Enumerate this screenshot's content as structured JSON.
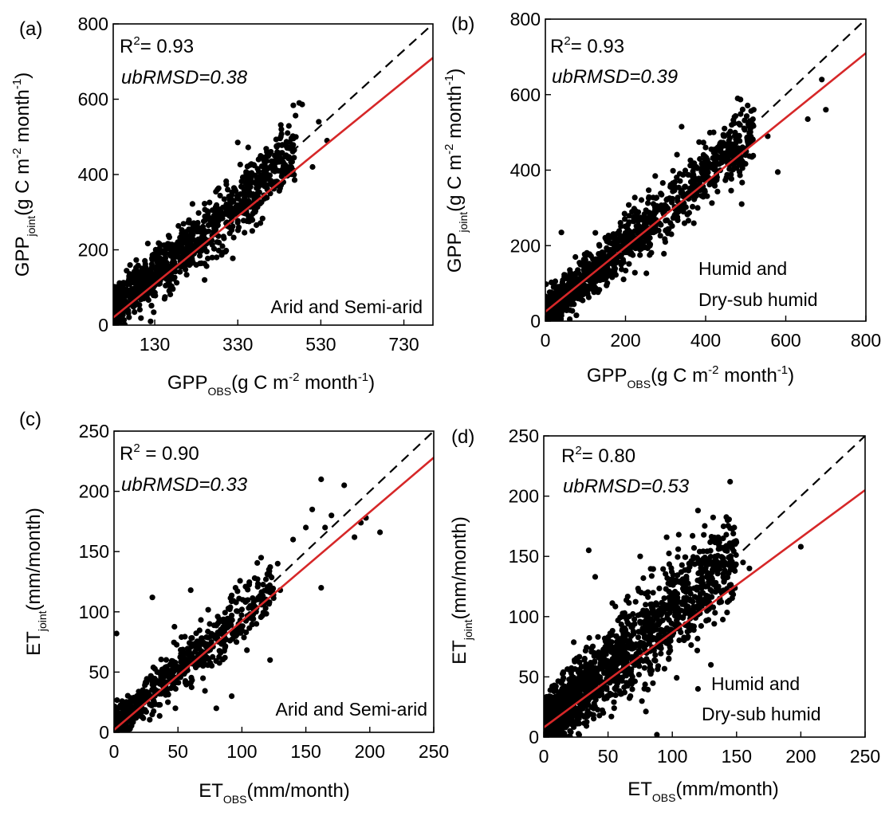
{
  "figure": {
    "background": "#ffffff"
  },
  "chart_data": [
    {
      "type": "scatter",
      "panel_label": "(a)",
      "xlabel": {
        "main": "GPP",
        "sub": "OBS",
        "unit_pre": "(g C m",
        "unit_sup1": "-2",
        "unit_mid": " month",
        "unit_sup2": "-1",
        "unit_post": ")"
      },
      "ylabel": {
        "main": "GPP",
        "sub": "joint",
        "unit_pre": "(g C m",
        "unit_sup1": "-2",
        "unit_mid": " month",
        "unit_sup2": "-1",
        "unit_post": ")"
      },
      "xlim": [
        30,
        800
      ],
      "ylim": [
        0,
        800
      ],
      "xticks": [
        130,
        330,
        530,
        730
      ],
      "xtick_labels": [
        "130",
        "330",
        "530",
        "730"
      ],
      "yticks": [
        0,
        200,
        400,
        600,
        800
      ],
      "ytick_labels": [
        "0",
        "200",
        "400",
        "600",
        "800"
      ],
      "stats": {
        "r2_label": "R",
        "r2_sup": "2",
        "r2_value": "= 0.93",
        "ubrmsd": "ubRMSD=0.38"
      },
      "region_label": [
        "Arid and Semi-arid"
      ],
      "one_to_one": {
        "from": [
          430,
          430
        ],
        "to": [
          800,
          800
        ]
      },
      "fit_line": {
        "from": [
          30,
          20
        ],
        "to": [
          800,
          710
        ]
      },
      "colors": {
        "points": "#000000",
        "fit": "#d62728",
        "one_to_one": "#000000"
      },
      "cloud": {
        "n": 1100,
        "x_range": [
          30,
          470
        ],
        "slope": 0.95,
        "intercept": 12,
        "noise": 42,
        "zero_floor": true
      },
      "points": [
        [
          478,
          590
        ],
        [
          485,
          586
        ],
        [
          510,
          420
        ],
        [
          525,
          540
        ],
        [
          545,
          490
        ],
        [
          435,
          520
        ],
        [
          450,
          510
        ],
        [
          462,
          470
        ],
        [
          470,
          500
        ],
        [
          400,
          460
        ],
        [
          380,
          440
        ],
        [
          355,
          472
        ],
        [
          330,
          485
        ],
        [
          220,
          175
        ],
        [
          230,
          160
        ],
        [
          120,
          10
        ],
        [
          165,
          120
        ],
        [
          250,
          120
        ],
        [
          310,
          290
        ],
        [
          395,
          420
        ]
      ]
    },
    {
      "type": "scatter",
      "panel_label": "(b)",
      "xlabel": {
        "main": "GPP",
        "sub": "OBS",
        "unit_pre": "(g C m",
        "unit_sup1": "-2",
        "unit_mid": " month",
        "unit_sup2": "-1",
        "unit_post": ")"
      },
      "ylabel": {
        "main": "GPP",
        "sub": "joint",
        "unit_pre": "(g C m",
        "unit_sup1": "-2",
        "unit_mid": " month",
        "unit_sup2": "-1",
        "unit_post": ")"
      },
      "xlim": [
        0,
        800
      ],
      "ylim": [
        0,
        800
      ],
      "xticks": [
        0,
        200,
        400,
        600,
        800
      ],
      "xtick_labels": [
        "0",
        "200",
        "400",
        "600",
        "800"
      ],
      "yticks": [
        0,
        200,
        400,
        600,
        800
      ],
      "ytick_labels": [
        "0",
        "200",
        "400",
        "600",
        "800"
      ],
      "stats": {
        "r2_label": "R",
        "r2_sup": "2",
        "r2_value": "= 0.93",
        "ubrmsd": "ubRMSD=0.39"
      },
      "region_label": [
        "Humid and",
        "Dry-sub humid"
      ],
      "one_to_one": {
        "from": [
          540,
          540
        ],
        "to": [
          800,
          800
        ]
      },
      "fit_line": {
        "from": [
          0,
          25
        ],
        "to": [
          800,
          710
        ]
      },
      "colors": {
        "points": "#000000",
        "fit": "#d62728",
        "one_to_one": "#000000"
      },
      "cloud": {
        "n": 1300,
        "x_range": [
          0,
          520
        ],
        "slope": 0.93,
        "intercept": 18,
        "noise": 40,
        "zero_floor": true
      },
      "points": [
        [
          480,
          590
        ],
        [
          487,
          587
        ],
        [
          690,
          640
        ],
        [
          700,
          560
        ],
        [
          655,
          535
        ],
        [
          580,
          395
        ],
        [
          555,
          490
        ],
        [
          490,
          310
        ],
        [
          510,
          530
        ],
        [
          465,
          520
        ],
        [
          420,
          500
        ],
        [
          340,
          515
        ],
        [
          130,
          80
        ],
        [
          40,
          235
        ],
        [
          75,
          170
        ],
        [
          300,
          240
        ],
        [
          380,
          300
        ],
        [
          440,
          420
        ],
        [
          520,
          560
        ],
        [
          400,
          460
        ]
      ]
    },
    {
      "type": "scatter",
      "panel_label": "(c)",
      "xlabel": {
        "main": "ET",
        "sub": "OBS",
        "unit": "(mm/month)"
      },
      "ylabel": {
        "main": "ET",
        "sub": "joint",
        "unit": "(mm/month)"
      },
      "xlim": [
        0,
        250
      ],
      "ylim": [
        0,
        250
      ],
      "xticks": [
        0,
        50,
        100,
        150,
        200,
        250
      ],
      "xtick_labels": [
        "0",
        "50",
        "100",
        "150",
        "200",
        "250"
      ],
      "yticks": [
        0,
        50,
        100,
        150,
        200,
        250
      ],
      "ytick_labels": [
        "0",
        "50",
        "100",
        "150",
        "200",
        "250"
      ],
      "stats": {
        "r2_label": "R",
        "r2_sup": "2",
        "r2_value": " = 0.90",
        "ubrmsd": "ubRMSD=0.33"
      },
      "region_label": [
        "Arid and Semi-arid"
      ],
      "one_to_one": {
        "from": [
          125,
          125
        ],
        "to": [
          250,
          250
        ]
      },
      "fit_line": {
        "from": [
          0,
          2
        ],
        "to": [
          250,
          228
        ]
      },
      "colors": {
        "points": "#000000",
        "fit": "#d62728",
        "one_to_one": "#000000"
      },
      "cloud": {
        "n": 700,
        "x_range": [
          0,
          125
        ],
        "slope": 0.92,
        "intercept": 5,
        "noise": 12,
        "zero_floor": true
      },
      "points": [
        [
          162,
          210
        ],
        [
          180,
          205
        ],
        [
          197,
          178
        ],
        [
          208,
          166
        ],
        [
          188,
          162
        ],
        [
          193,
          174
        ],
        [
          170,
          180
        ],
        [
          165,
          170
        ],
        [
          155,
          185
        ],
        [
          140,
          160
        ],
        [
          162,
          120
        ],
        [
          130,
          118
        ],
        [
          128,
          140
        ],
        [
          115,
          145
        ],
        [
          122,
          60
        ],
        [
          95,
          120
        ],
        [
          60,
          118
        ],
        [
          30,
          112
        ],
        [
          2,
          82
        ],
        [
          80,
          20
        ],
        [
          48,
          20
        ],
        [
          92,
          30
        ],
        [
          100,
          102
        ],
        [
          110,
          128
        ],
        [
          150,
          170
        ]
      ]
    },
    {
      "type": "scatter",
      "panel_label": "(d)",
      "xlabel": {
        "main": "ET",
        "sub": "OBS",
        "unit": "(mm/month)"
      },
      "ylabel": {
        "main": "ET",
        "sub": "joint",
        "unit": "(mm/month)"
      },
      "xlim": [
        0,
        250
      ],
      "ylim": [
        0,
        250
      ],
      "xticks": [
        0,
        50,
        100,
        150,
        200,
        250
      ],
      "xtick_labels": [
        "0",
        "50",
        "100",
        "150",
        "200",
        "250"
      ],
      "yticks": [
        0,
        50,
        100,
        150,
        200,
        250
      ],
      "ytick_labels": [
        "0",
        "50",
        "100",
        "150",
        "200",
        "250"
      ],
      "stats": {
        "r2_label": "R",
        "r2_sup": "2",
        "r2_value": "= 0.80",
        "ubrmsd": "ubRMSD=0.53"
      },
      "region_label": [
        "Humid and",
        "Dry-sub humid"
      ],
      "one_to_one": {
        "from": [
          155,
          155
        ],
        "to": [
          250,
          250
        ]
      },
      "fit_line": {
        "from": [
          0,
          8
        ],
        "to": [
          250,
          205
        ]
      },
      "colors": {
        "points": "#000000",
        "fit": "#d62728",
        "one_to_one": "#000000"
      },
      "cloud": {
        "n": 1700,
        "x_range": [
          0,
          150
        ],
        "slope": 0.95,
        "intercept": 10,
        "noise": 20,
        "zero_floor": true
      },
      "points": [
        [
          200,
          158
        ],
        [
          145,
          212
        ],
        [
          120,
          188
        ],
        [
          143,
          180
        ],
        [
          160,
          140
        ],
        [
          155,
          145
        ],
        [
          142,
          168
        ],
        [
          105,
          168
        ],
        [
          88,
          2
        ],
        [
          75,
          150
        ],
        [
          40,
          133
        ],
        [
          35,
          155
        ],
        [
          120,
          40
        ],
        [
          130,
          60
        ]
      ]
    }
  ]
}
